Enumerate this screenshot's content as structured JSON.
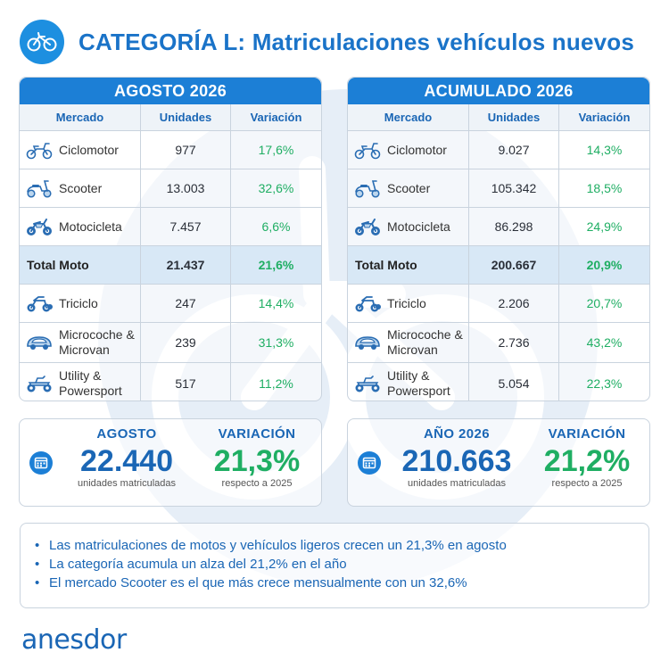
{
  "header": {
    "title": "CATEGORÍA L: Matriculaciones vehículos nuevos",
    "logo_icon": "bicycle-logo-icon"
  },
  "columns": {
    "market": "Mercado",
    "units": "Unidades",
    "change": "Variación"
  },
  "left_table": {
    "title": "AGOSTO 2026",
    "rows": [
      {
        "label": "Ciclomotor",
        "icon": "moped-icon",
        "units": "977",
        "change": "17,6%"
      },
      {
        "label": "Scooter",
        "icon": "scooter-icon",
        "units": "13.003",
        "change": "32,6%"
      },
      {
        "label": "Motocicleta",
        "icon": "motorcycle-icon",
        "units": "7.457",
        "change": "6,6%"
      },
      {
        "label": "Total Moto",
        "units": "21.437",
        "change": "21,6%"
      },
      {
        "label": "Triciclo",
        "icon": "tricycle-icon",
        "units": "247",
        "change": "14,4%"
      },
      {
        "label": "Microcoche & Microvan",
        "icon": "microcar-icon",
        "units": "239",
        "change": "31,3%"
      },
      {
        "label": "Utility & Powersport",
        "icon": "quad-icon",
        "units": "517",
        "change": "11,2%"
      }
    ]
  },
  "right_table": {
    "title": "ACUMULADO 2026",
    "rows": [
      {
        "label": "Ciclomotor",
        "icon": "moped-icon",
        "units": "9.027",
        "change": "14,3%"
      },
      {
        "label": "Scooter",
        "icon": "scooter-icon",
        "units": "105.342",
        "change": "18,5%"
      },
      {
        "label": "Motocicleta",
        "icon": "motorcycle-icon",
        "units": "86.298",
        "change": "24,9%"
      },
      {
        "label": "Total Moto",
        "units": "200.667",
        "change": "20,9%"
      },
      {
        "label": "Triciclo",
        "icon": "tricycle-icon",
        "units": "2.206",
        "change": "20,7%"
      },
      {
        "label": "Microcoche & Microvan",
        "icon": "microcar-icon",
        "units": "2.736",
        "change": "43,2%"
      },
      {
        "label": "Utility & Powersport",
        "icon": "quad-icon",
        "units": "5.054",
        "change": "22,3%"
      }
    ]
  },
  "summary_left": {
    "head1": "AGOSTO",
    "value1": "22.440",
    "sub1": "unidades matriculadas",
    "head2": "VARIACIÓN",
    "value2": "21,3%",
    "sub2": "respecto a 2025"
  },
  "summary_right": {
    "head1": "AÑO 2026",
    "value1": "210.663",
    "sub1": "unidades matriculadas",
    "head2": "VARIACIÓN",
    "value2": "21,2%",
    "sub2": "respecto a 2025"
  },
  "bullets": [
    "Las matriculaciones de motos y vehículos ligeros crecen un 21,3% en agosto",
    "La categoría acumula un alza del 21,2% en el año",
    "El mercado Scooter es el que más crece mensualmente con un 32,6%"
  ],
  "brand": "anesdor",
  "colors": {
    "primary": "#1c7fd6",
    "positive": "#1fae63",
    "title": "#1a73c8"
  }
}
